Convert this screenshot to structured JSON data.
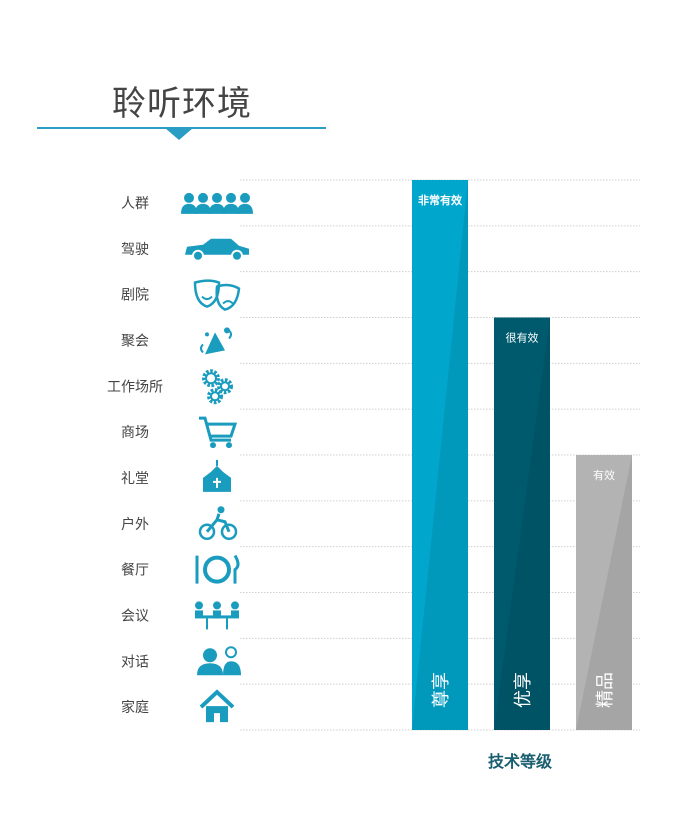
{
  "title": "聆听环境",
  "chart_data": {
    "type": "bar",
    "orientation": "vertical",
    "categories": [
      "人群",
      "驾驶",
      "剧院",
      "聚会",
      "工作场所",
      "商场",
      "礼堂",
      "户外",
      "餐厅",
      "会议",
      "对话",
      "家庭"
    ],
    "category_icons": [
      "crowd-icon",
      "car-icon",
      "theater-masks-icon",
      "party-icon",
      "gears-icon",
      "shopping-cart-icon",
      "church-icon",
      "cyclist-icon",
      "plate-cutlery-icon",
      "meeting-icon",
      "conversation-icon",
      "house-icon"
    ],
    "series": [
      {
        "name": "尊享",
        "top_label": "非常有效",
        "covers_from": "人群",
        "environments_covered": 12,
        "color": "#00a6cc"
      },
      {
        "name": "优享",
        "top_label": "很有效",
        "covers_from": "聚会",
        "environments_covered": 9,
        "color": "#005a6e"
      },
      {
        "name": "精品",
        "top_label": "有效",
        "covers_from": "礼堂",
        "environments_covered": 6,
        "color": "#b3b3b3"
      }
    ],
    "xlabel": "技术等级",
    "grid": true
  },
  "colors": {
    "accent": "#2a9dc4",
    "label": "#444444",
    "icon": "#1a9cbf"
  }
}
